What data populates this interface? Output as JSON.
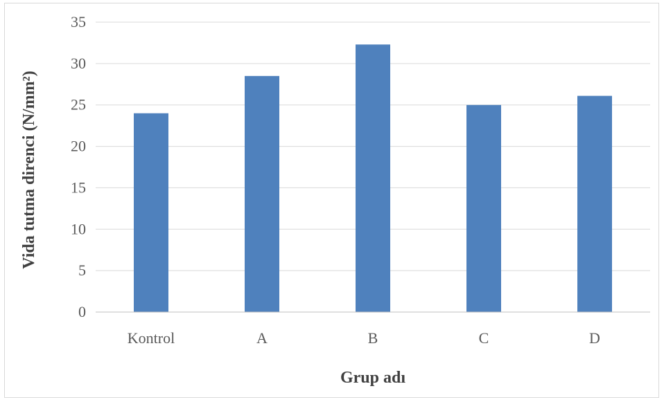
{
  "chart_data": {
    "type": "bar",
    "categories": [
      "Kontrol",
      "A",
      "B",
      "C",
      "D"
    ],
    "values": [
      24.0,
      28.5,
      32.3,
      25.0,
      26.1
    ],
    "xlabel": "Grup adı",
    "ylabel": "Vida tutma direnci (N/mm²)",
    "ylim": [
      0,
      35
    ],
    "yticks": [
      0,
      5,
      10,
      15,
      20,
      25,
      30,
      35
    ],
    "grid": true,
    "legend": "none",
    "colors": {
      "bar": "#4f81bd",
      "grid": "#d9d9d9",
      "axis": "#bfbfbf"
    }
  }
}
